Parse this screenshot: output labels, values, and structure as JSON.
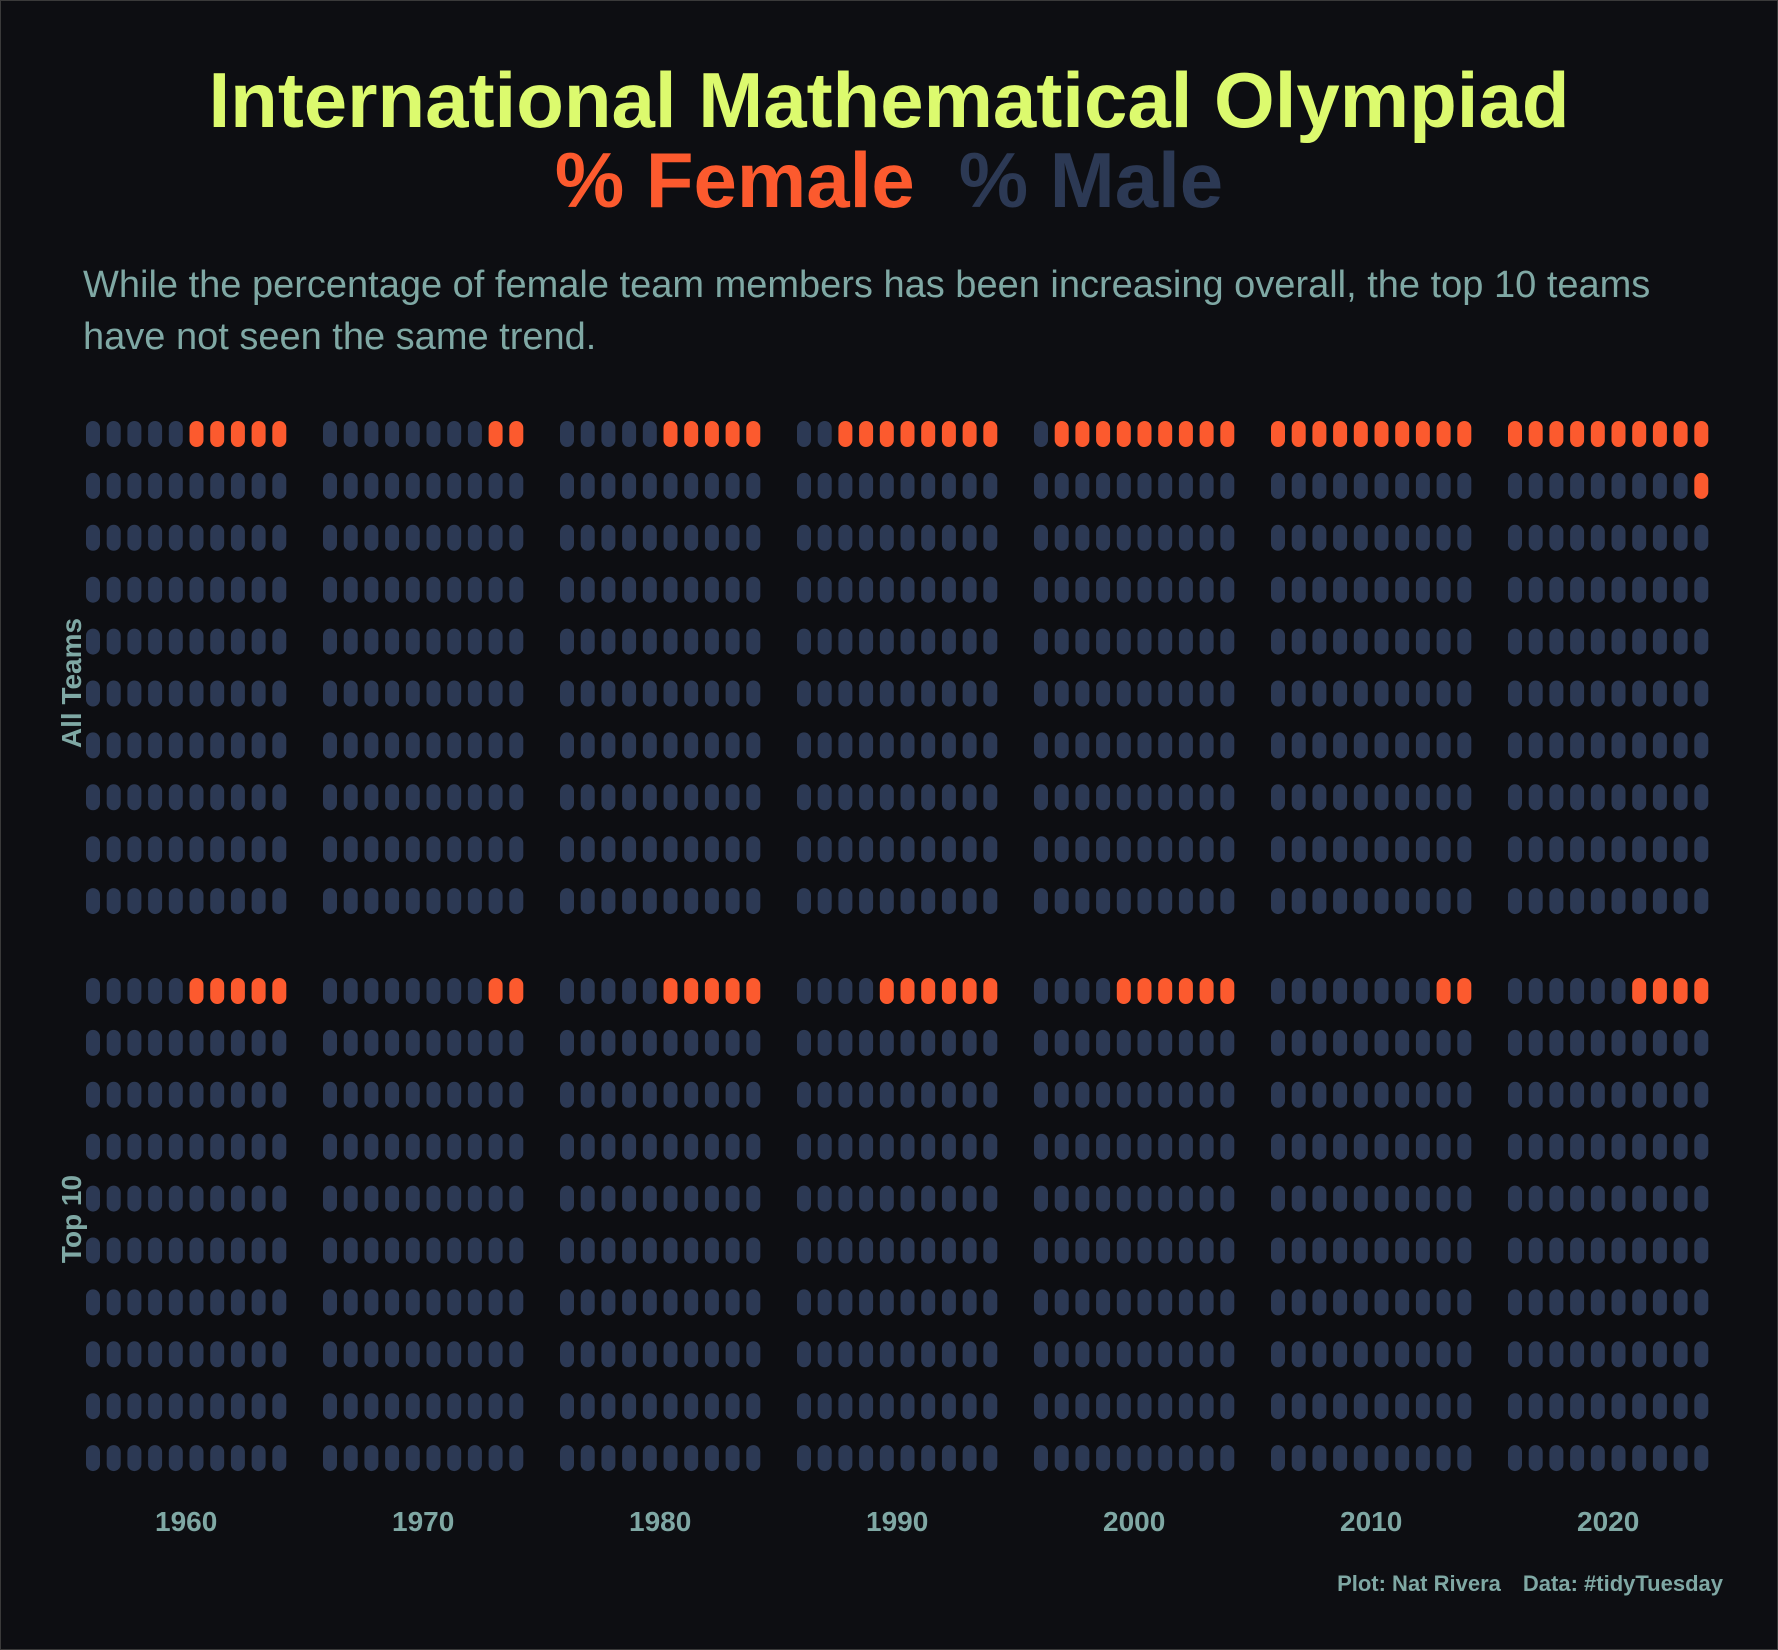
{
  "title": "International Mathematical Olympiad",
  "legend_title": {
    "female": "% Female",
    "male": "% Male"
  },
  "subtitle": "While the percentage of female team members has been increasing overall, the top 10 teams have not seen the same trend.",
  "caption": {
    "plot": "Plot: Nat Rivera",
    "data": "Data: #tidyTuesday"
  },
  "colors": {
    "female": "#fc5a2e",
    "male": "#2c3954",
    "title": "#dcfa6e",
    "text": "#7fa8a4",
    "background": "#0d0e12"
  },
  "chart_data": {
    "type": "waffle",
    "grid": "10x10 per decade, filled from top-right",
    "x_ticks": [
      "1960",
      "1970",
      "1980",
      "1990",
      "2000",
      "2010",
      "2020"
    ],
    "facets": [
      "All Teams",
      "Top 10"
    ],
    "series": [
      {
        "name": "All Teams",
        "values": [
          5,
          2,
          5,
          8,
          9,
          10,
          11
        ]
      },
      {
        "name": "Top 10",
        "values": [
          5,
          2,
          5,
          6,
          6,
          2,
          4
        ]
      }
    ],
    "value_unit": "% female",
    "legend": "title"
  }
}
